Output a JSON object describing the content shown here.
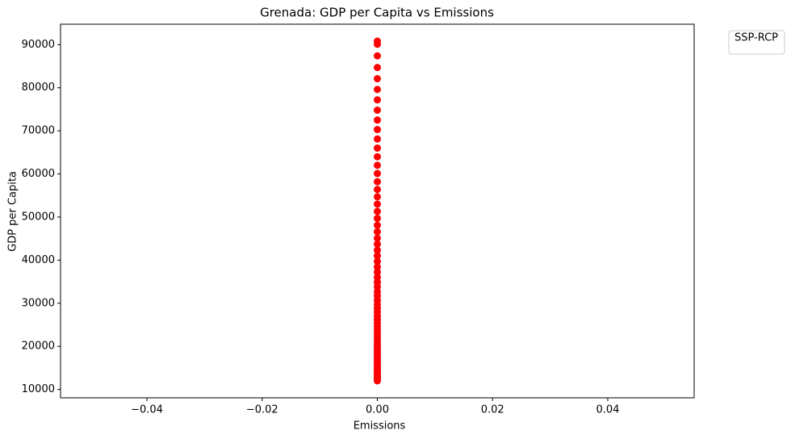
{
  "chart_data": {
    "type": "scatter",
    "title": "Grenada: GDP per Capita vs Emissions",
    "xlabel": "Emissions",
    "ylabel": "GDP per Capita",
    "legend_title": "SSP-RCP",
    "legend": "upper left outside",
    "color": "#ff0000",
    "x": [
      0,
      0,
      0,
      0,
      0,
      0,
      0,
      0,
      0,
      0,
      0,
      0,
      0,
      0,
      0,
      0,
      0,
      0,
      0,
      0,
      0,
      0,
      0,
      0,
      0,
      0,
      0,
      0,
      0,
      0,
      0,
      0,
      0,
      0,
      0,
      0,
      0,
      0,
      0,
      0,
      0,
      0,
      0,
      0,
      0,
      0,
      0,
      0,
      0,
      0,
      0,
      0,
      0,
      0,
      0,
      0,
      0,
      0,
      0,
      0,
      0,
      0,
      0,
      0,
      0,
      0,
      0,
      0
    ],
    "y": [
      12000,
      12300,
      12600,
      12900,
      13200,
      13500,
      13900,
      14300,
      14700,
      15100,
      15500,
      16000,
      16500,
      17000,
      17500,
      18000,
      18600,
      19200,
      19800,
      20400,
      21000,
      21700,
      22400,
      23100,
      23800,
      24600,
      25400,
      26200,
      27000,
      27900,
      28800,
      29700,
      30700,
      31700,
      32700,
      33800,
      34900,
      36000,
      37200,
      38400,
      39700,
      41000,
      42300,
      43700,
      45100,
      46600,
      48100,
      49700,
      51300,
      53000,
      54700,
      56400,
      58200,
      60100,
      62000,
      64000,
      66000,
      68100,
      70300,
      72500,
      74800,
      77200,
      79600,
      82100,
      84700,
      87400,
      90100,
      90800
    ],
    "xlim": [
      -0.055,
      0.055
    ],
    "xticks": [
      {
        "value": -0.04,
        "label": "−0.04"
      },
      {
        "value": -0.02,
        "label": "−0.02"
      },
      {
        "value": 0,
        "label": "0.00"
      },
      {
        "value": 0.02,
        "label": "0.02"
      },
      {
        "value": 0.04,
        "label": "0.04"
      }
    ],
    "ylim": [
      8060,
      94740
    ],
    "yticks": [
      10000,
      20000,
      30000,
      40000,
      50000,
      60000,
      70000,
      80000,
      90000
    ]
  }
}
